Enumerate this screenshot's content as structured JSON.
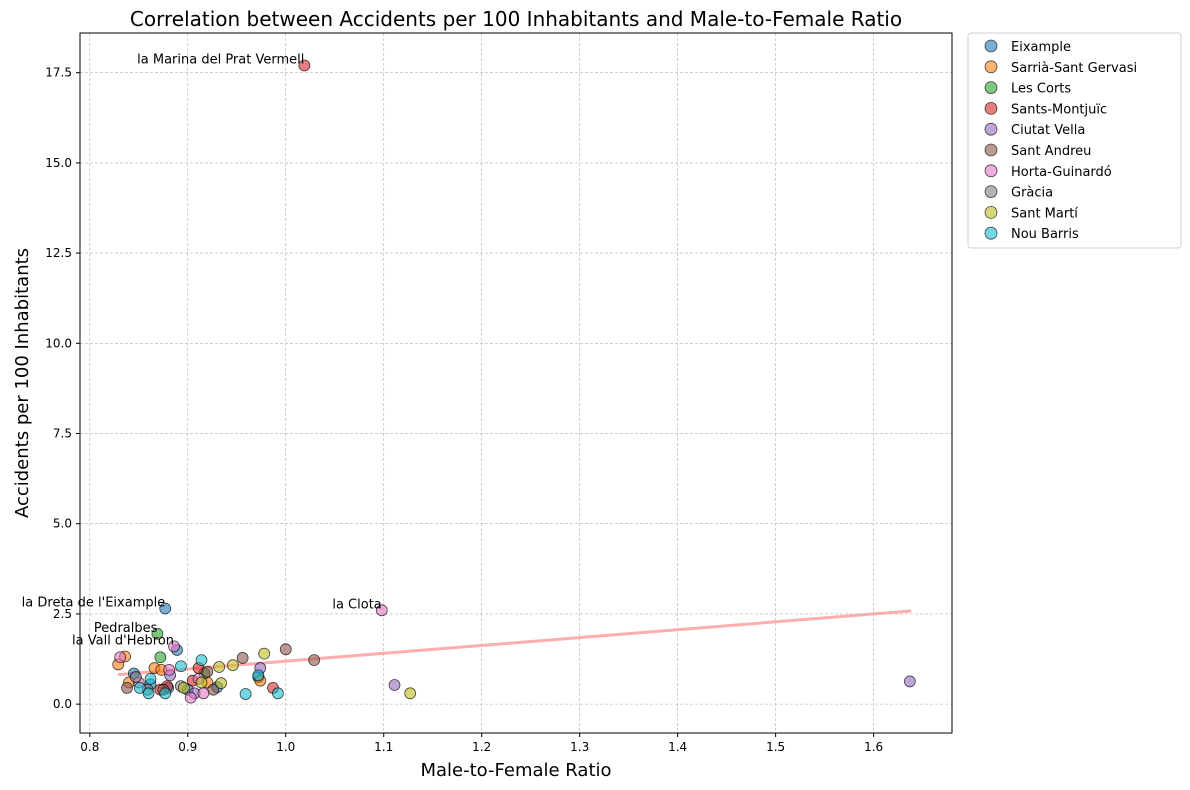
{
  "chart_data": {
    "type": "scatter",
    "title": "Correlation between Accidents per 100 Inhabitants and Male-to-Female Ratio",
    "xlabel": "Male-to-Female Ratio",
    "ylabel": "Accidents per 100 Inhabitants",
    "xlim": [
      0.79,
      1.68
    ],
    "ylim": [
      -0.8,
      18.6
    ],
    "xticks": [
      "0.8",
      "0.9",
      "1.0",
      "1.1",
      "1.2",
      "1.3",
      "1.4",
      "1.5",
      "1.6"
    ],
    "yticks": [
      "0.0",
      "2.5",
      "5.0",
      "7.5",
      "10.0",
      "12.5",
      "15.0",
      "17.5"
    ],
    "grid": true,
    "legend_placement": "outside-top-right",
    "trendline": {
      "color": "#ff9999",
      "x": [
        0.83,
        1.637
      ],
      "y": [
        0.82,
        2.58
      ]
    },
    "series": [
      {
        "name": "Eixample",
        "color": "#1f77b4",
        "points": [
          [
            0.877,
            2.65
          ],
          [
            0.889,
            1.5
          ],
          [
            0.845,
            0.85
          ],
          [
            0.862,
            0.55
          ],
          [
            0.88,
            0.45
          ],
          [
            0.93,
            0.47
          ],
          [
            0.9,
            0.4
          ],
          [
            0.972,
            0.75
          ]
        ]
      },
      {
        "name": "Sarrià-Sant Gervasi",
        "color": "#ff7f0e",
        "points": [
          [
            0.829,
            1.1
          ],
          [
            0.836,
            1.32
          ],
          [
            0.866,
            1.0
          ],
          [
            0.873,
            0.95
          ],
          [
            0.92,
            0.6
          ],
          [
            0.974,
            0.65
          ],
          [
            0.84,
            0.6
          ]
        ]
      },
      {
        "name": "Les Corts",
        "color": "#2ca02c",
        "points": [
          [
            0.869,
            1.95
          ],
          [
            0.872,
            1.3
          ],
          [
            0.917,
            0.85
          ]
        ]
      },
      {
        "name": "Sants-Montjuïc",
        "color": "#d62728",
        "points": [
          [
            1.019,
            17.7
          ],
          [
            0.911,
            1.0
          ],
          [
            0.879,
            0.5
          ],
          [
            0.872,
            0.4
          ],
          [
            0.905,
            0.65
          ],
          [
            0.987,
            0.45
          ]
        ]
      },
      {
        "name": "Ciutat Vella",
        "color": "#9467bd",
        "points": [
          [
            1.637,
            0.63
          ],
          [
            1.111,
            0.53
          ],
          [
            0.974,
            1.0
          ],
          [
            0.907,
            0.3
          ],
          [
            0.882,
            0.8
          ]
        ]
      },
      {
        "name": "Sant Andreu",
        "color": "#8c564b",
        "points": [
          [
            1.0,
            1.52
          ],
          [
            1.029,
            1.22
          ],
          [
            0.956,
            1.28
          ],
          [
            0.838,
            0.45
          ],
          [
            0.92,
            0.9
          ],
          [
            0.875,
            0.4
          ],
          [
            0.926,
            0.4
          ]
        ]
      },
      {
        "name": "Horta-Guinardó",
        "color": "#e377c2",
        "points": [
          [
            1.098,
            2.6
          ],
          [
            0.886,
            1.6
          ],
          [
            0.831,
            1.3
          ],
          [
            0.881,
            0.95
          ],
          [
            0.903,
            0.18
          ],
          [
            0.916,
            0.3
          ],
          [
            0.85,
            0.6
          ],
          [
            0.911,
            0.7
          ]
        ]
      },
      {
        "name": "Gràcia",
        "color": "#7f7f7f",
        "points": [
          [
            0.847,
            0.75
          ],
          [
            0.859,
            0.4
          ],
          [
            0.893,
            0.5
          ]
        ]
      },
      {
        "name": "Sant Martí",
        "color": "#bcbd22",
        "points": [
          [
            1.127,
            0.3
          ],
          [
            0.978,
            1.4
          ],
          [
            0.946,
            1.08
          ],
          [
            0.932,
            1.03
          ],
          [
            0.934,
            0.58
          ],
          [
            0.914,
            0.6
          ],
          [
            0.896,
            0.45
          ]
        ]
      },
      {
        "name": "Nou Barris",
        "color": "#17becf",
        "points": [
          [
            0.992,
            0.3
          ],
          [
            0.959,
            0.28
          ],
          [
            0.914,
            1.22
          ],
          [
            0.893,
            1.05
          ],
          [
            0.851,
            0.45
          ],
          [
            0.862,
            0.7
          ],
          [
            0.86,
            0.3
          ],
          [
            0.877,
            0.3
          ],
          [
            0.972,
            0.8
          ]
        ]
      }
    ],
    "annotations": [
      {
        "text": "la Marina del Prat Vermell",
        "x": 1.019,
        "y": 17.7,
        "anchor": "end"
      },
      {
        "text": "la Dreta de l'Eixample",
        "x": 0.877,
        "y": 2.65,
        "anchor": "end"
      },
      {
        "text": "la Clota",
        "x": 1.098,
        "y": 2.6,
        "anchor": "end"
      },
      {
        "text": "Pedralbes",
        "x": 0.869,
        "y": 1.95,
        "anchor": "end"
      },
      {
        "text": "la Vall d'Hebron",
        "x": 0.886,
        "y": 1.6,
        "anchor": "end"
      }
    ]
  }
}
